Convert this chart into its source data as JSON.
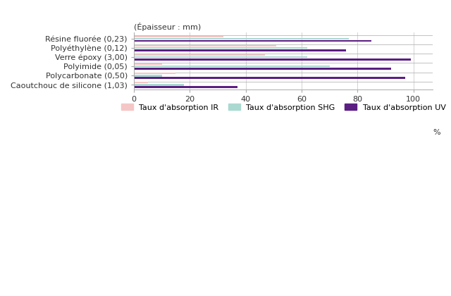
{
  "header_label": "(Épaisseur : mm)",
  "categories": [
    "Résine fluorée (0,23)",
    "Polyéthylène (0,12)",
    "Verre époxy (3,00)",
    "Polyimide (0,05)",
    "Polycarbonate (0,50)",
    "Caoutchouc de silicone (1,03)"
  ],
  "ir_values": [
    32,
    51,
    47,
    10,
    15,
    5
  ],
  "shg_values": [
    77,
    62,
    62,
    70,
    10,
    18
  ],
  "uv_values": [
    85,
    76,
    99,
    92,
    97,
    37
  ],
  "color_ir": "#f5c6c6",
  "color_shg": "#aad9d1",
  "color_uv": "#5b1e82",
  "legend_ir": "Taux d'absorption IR",
  "legend_shg": "Taux d'absorption SHG",
  "legend_uv": "Taux d'absorption UV",
  "xlabel": "%",
  "xlim": [
    0,
    107
  ],
  "xticks": [
    0,
    20,
    40,
    60,
    80,
    100
  ],
  "bar_height": 0.2,
  "background_color": "#ffffff",
  "grid_color": "#cccccc",
  "spine_color": "#aaaaaa",
  "label_color": "#333333",
  "tick_label_fontsize": 8.0,
  "legend_fontsize": 8.0,
  "axis_label_fontsize": 8.0
}
